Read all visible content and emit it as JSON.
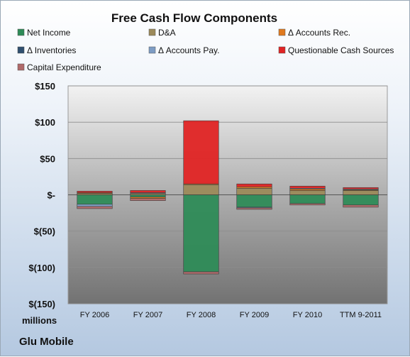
{
  "chart_data": {
    "type": "bar",
    "stacked": true,
    "title": "Free Cash Flow Components",
    "unit_label": "millions",
    "company": "Glu Mobile",
    "categories": [
      "FY 2006",
      "FY 2007",
      "FY 2008",
      "FY 2009",
      "FY 2010",
      "TTM 9-2011"
    ],
    "ylim": [
      -150,
      150
    ],
    "yticks": [
      150,
      100,
      50,
      0,
      -50,
      -100,
      -150
    ],
    "ytick_labels": [
      "$150",
      "$100",
      "$50",
      "$-",
      "$(50)",
      "$(100)",
      "$(150)"
    ],
    "grid": true,
    "legend_position": "top",
    "series": [
      {
        "name": "Net Income",
        "color": "#2e8b57",
        "values": [
          -13,
          -3,
          -106,
          -17,
          -12,
          -14
        ]
      },
      {
        "name": "D&A",
        "color": "#9c8a5a",
        "values": [
          2,
          2,
          14,
          9,
          6,
          6
        ]
      },
      {
        "name": "Δ Accounts Rec.",
        "color": "#e07a1f",
        "values": [
          1,
          -2,
          1,
          2,
          2,
          1
        ]
      },
      {
        "name": "Δ Inventories",
        "color": "#2f4f6f",
        "values": [
          0,
          0,
          0,
          0,
          0,
          0
        ]
      },
      {
        "name": "Δ Accounts Pay.",
        "color": "#7d9cc4",
        "values": [
          -3,
          1,
          0,
          -1,
          1,
          1
        ]
      },
      {
        "name": "Questionable Cash Sources",
        "color": "#e02424",
        "values": [
          2,
          3,
          87,
          4,
          3,
          2
        ]
      },
      {
        "name": "Capital Expenditure",
        "color": "#b06a6a",
        "values": [
          -3,
          -3,
          -3,
          -2,
          -2,
          -3
        ]
      }
    ]
  }
}
